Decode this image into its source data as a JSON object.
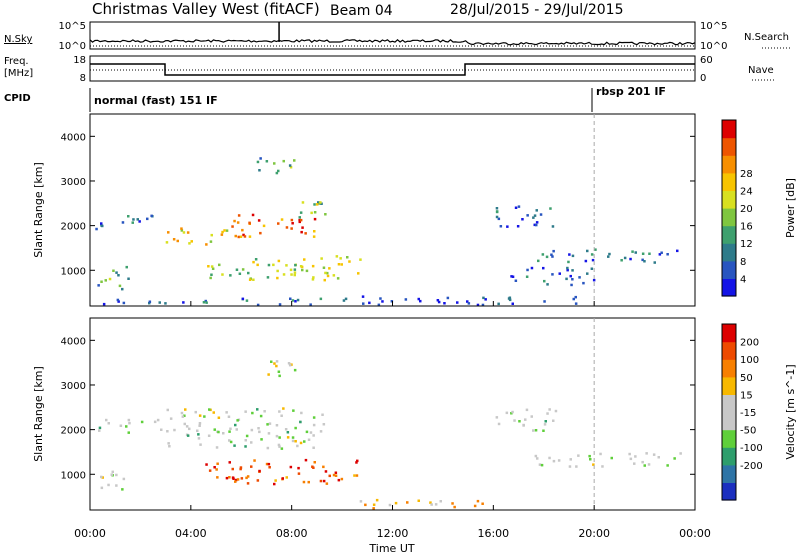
{
  "header": {
    "station": "Christmas Valley West (fitACF)",
    "beam": "Beam 04",
    "dates": "28/Jul/2015 - 29/Jul/2015"
  },
  "nsky": {
    "label": "N.Sky",
    "left_ticks": [
      "10^5",
      "10^0"
    ],
    "right_ticks": [
      "10^5",
      "10^0"
    ],
    "right_label": "N.Search"
  },
  "freq": {
    "label_lines": [
      "Freq.",
      "[MHz]"
    ],
    "left_ticks": [
      "18",
      "8"
    ],
    "right_ticks": [
      "60",
      "0"
    ],
    "right_label": "Nave"
  },
  "cpid": {
    "label": "CPID",
    "modes": [
      {
        "name": "normal (fast) 151 IF",
        "start_hour": 0
      },
      {
        "name": "rbsp 201 IF",
        "start_hour": 20.0
      }
    ]
  },
  "x_axis": {
    "label": "Time UT",
    "ticks": [
      "00:00",
      "04:00",
      "08:00",
      "12:00",
      "16:00",
      "20:00",
      "00:00"
    ],
    "range_hours": [
      0,
      24
    ]
  },
  "chart_data": [
    {
      "type": "heatmap",
      "name": "power",
      "ylabel": "Slant Range [km]",
      "y_ticks": [
        1000,
        2000,
        3000,
        4000
      ],
      "ylim": [
        200,
        4500
      ],
      "colorbar": {
        "label": "Power [dB]",
        "ticks": [
          "4",
          "8",
          "12",
          "16",
          "20",
          "24",
          "28"
        ],
        "colors": [
          "#1414e6",
          "#2855c0",
          "#2e7b8a",
          "#3ea06e",
          "#7fc640",
          "#d8e020",
          "#f7c400",
          "#f78f00",
          "#ee5500",
          "#dd0000"
        ]
      },
      "bands": [
        {
          "t0": 0.2,
          "t1": 2.8,
          "r0": 1950,
          "r1": 2250,
          "level": 0.15
        },
        {
          "t0": 3.0,
          "t1": 5.5,
          "r0": 1600,
          "r1": 2000,
          "level": 0.6
        },
        {
          "t0": 5.5,
          "t1": 9.0,
          "r0": 1750,
          "r1": 2300,
          "level": 0.8
        },
        {
          "t0": 7.5,
          "t1": 9.3,
          "r0": 2200,
          "r1": 2600,
          "level": 0.45
        },
        {
          "t0": 4.5,
          "t1": 10.8,
          "r0": 800,
          "r1": 1350,
          "level": 0.5
        },
        {
          "t0": 0.2,
          "t1": 1.5,
          "r0": 600,
          "r1": 1100,
          "level": 0.35
        },
        {
          "t0": 6.5,
          "t1": 8.2,
          "r0": 3200,
          "r1": 3600,
          "level": 0.35
        },
        {
          "t0": 0.5,
          "t1": 10.5,
          "r0": 250,
          "r1": 400,
          "level": 0.2
        },
        {
          "t0": 10.5,
          "t1": 19.5,
          "r0": 250,
          "r1": 450,
          "level": 0.1
        },
        {
          "t0": 16.0,
          "t1": 18.5,
          "r0": 2000,
          "r1": 2500,
          "level": 0.15
        },
        {
          "t0": 17.5,
          "t1": 23.5,
          "r0": 1200,
          "r1": 1500,
          "level": 0.2
        },
        {
          "t0": 16.5,
          "t1": 20.0,
          "r0": 700,
          "r1": 1100,
          "level": 0.15
        }
      ]
    },
    {
      "type": "heatmap",
      "name": "velocity",
      "ylabel": "Slant Range [km]",
      "y_ticks": [
        1000,
        2000,
        3000,
        4000
      ],
      "ylim": [
        200,
        4500
      ],
      "colorbar": {
        "label": "Velocity [m s^-1]",
        "ticks": [
          "200",
          "100",
          "50",
          "15",
          "-15",
          "-50",
          "-100",
          "-200"
        ],
        "colors": [
          "#1b2fbf",
          "#2e74a6",
          "#2e9e6c",
          "#5fcf3a",
          "#c8c8c8",
          "#c8c8c8",
          "#f7b800",
          "#f77f00",
          "#ee4a00",
          "#dd0000"
        ]
      },
      "bands": [
        {
          "t0": 0.2,
          "t1": 2.8,
          "r0": 1950,
          "r1": 2250,
          "level": 0.45
        },
        {
          "t0": 3.0,
          "t1": 9.3,
          "r0": 1600,
          "r1": 2500,
          "level": 0.45
        },
        {
          "t0": 4.5,
          "t1": 10.8,
          "r0": 800,
          "r1": 1350,
          "level": 0.85
        },
        {
          "t0": 0.2,
          "t1": 1.5,
          "r0": 600,
          "r1": 1100,
          "level": 0.45
        },
        {
          "t0": 6.5,
          "t1": 8.2,
          "r0": 3200,
          "r1": 3600,
          "level": 0.5
        },
        {
          "t0": 10.5,
          "t1": 16.0,
          "r0": 250,
          "r1": 450,
          "level": 0.6
        },
        {
          "t0": 17.5,
          "t1": 23.5,
          "r0": 1200,
          "r1": 1500,
          "level": 0.45
        },
        {
          "t0": 16.0,
          "t1": 18.5,
          "r0": 2000,
          "r1": 2500,
          "level": 0.45
        }
      ]
    }
  ]
}
